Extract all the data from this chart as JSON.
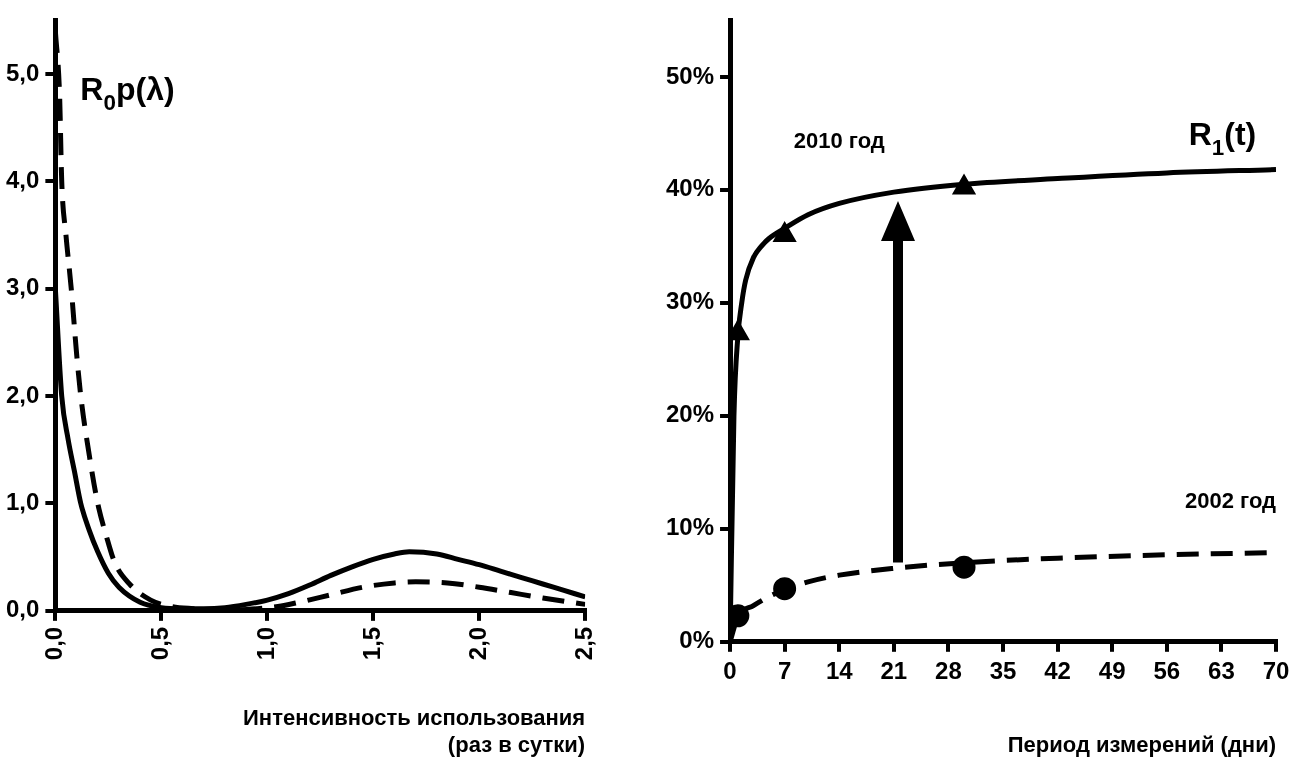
{
  "chart_data": [
    {
      "type": "line",
      "xlabel": "Интенсивность использования\n(раз в сутки)",
      "xlim": [
        0,
        2.5
      ],
      "xticks": [
        {
          "value": 0,
          "label": "0,0"
        },
        {
          "value": 0.5,
          "label": "0,5"
        },
        {
          "value": 1,
          "label": "1,0"
        },
        {
          "value": 1.5,
          "label": "1,5"
        },
        {
          "value": 2,
          "label": "2,0"
        },
        {
          "value": 2.5,
          "label": "2,5"
        }
      ],
      "ylim": [
        0,
        5.5
      ],
      "yticks": [
        {
          "value": 0,
          "label": "0,0"
        },
        {
          "value": 1,
          "label": "1,0"
        },
        {
          "value": 2,
          "label": "2,0"
        },
        {
          "value": 3,
          "label": "3,0"
        },
        {
          "value": 4,
          "label": "4,0"
        },
        {
          "value": 5,
          "label": "5,0"
        }
      ],
      "grid": false,
      "legend": false,
      "marker": "none",
      "annotations": [
        "R$_{0}$p(λ)"
      ],
      "series": [
        {
          "color": "#000000",
          "line_style": "solid",
          "x": [
            0,
            0.03,
            0.06,
            0.09,
            0.12,
            0.16,
            0.2,
            0.25,
            0.3,
            0.4,
            0.5,
            0.6,
            0.7,
            0.8,
            0.9,
            1.0,
            1.1,
            1.2,
            1.3,
            1.4,
            1.5,
            1.6,
            1.67,
            1.8,
            1.9,
            2.0,
            2.1,
            2.2,
            2.3,
            2.4,
            2.5
          ],
          "values": [
            3.0,
            2.0,
            1.6,
            1.3,
            1.0,
            0.75,
            0.55,
            0.35,
            0.22,
            0.08,
            0.03,
            0.02,
            0.02,
            0.03,
            0.06,
            0.1,
            0.16,
            0.24,
            0.33,
            0.41,
            0.48,
            0.53,
            0.55,
            0.53,
            0.48,
            0.43,
            0.37,
            0.31,
            0.25,
            0.19,
            0.13
          ]
        },
        {
          "color": "#000000",
          "line_style": "dashed",
          "x": [
            0,
            0.02,
            0.03,
            0.05,
            0.075,
            0.1,
            0.12,
            0.16,
            0.2,
            0.24,
            0.28,
            0.35,
            0.45,
            0.55,
            0.65,
            0.75,
            0.85,
            0.95,
            1.05,
            1.15,
            1.3,
            1.45,
            1.6,
            1.7,
            1.85,
            2.0,
            2.15,
            2.3,
            2.5
          ],
          "values": [
            5.4,
            4.8,
            4.0,
            3.5,
            3.0,
            2.4,
            2.0,
            1.45,
            1.0,
            0.7,
            0.45,
            0.25,
            0.1,
            0.04,
            0.02,
            0.01,
            0.01,
            0.02,
            0.04,
            0.08,
            0.15,
            0.22,
            0.26,
            0.27,
            0.26,
            0.22,
            0.17,
            0.12,
            0.06
          ]
        }
      ]
    },
    {
      "type": "line",
      "xlabel": "Период измерений (дни)",
      "xlim": [
        0,
        70
      ],
      "xticks": [
        0,
        7,
        14,
        21,
        28,
        35,
        42,
        49,
        56,
        63,
        70
      ],
      "ylim": [
        0,
        55
      ],
      "yticks": [
        {
          "value": 0,
          "label": "0%"
        },
        {
          "value": 10,
          "label": "10%"
        },
        {
          "value": 20,
          "label": "20%"
        },
        {
          "value": 30,
          "label": "30%"
        },
        {
          "value": 40,
          "label": "40%"
        },
        {
          "value": 50,
          "label": "50%"
        }
      ],
      "grid": false,
      "legend": false,
      "annotations": [
        "R$_{1}$(t)"
      ],
      "series": [
        {
          "name": "2010 год",
          "color": "#000000",
          "line_style": "solid",
          "marker": "none",
          "x": [
            0,
            0.5,
            1,
            1.5,
            2,
            3,
            4,
            5,
            7,
            10,
            14,
            21,
            30,
            42,
            56,
            70
          ],
          "values": [
            0,
            20,
            27,
            30,
            32,
            34,
            35,
            35.7,
            36.6,
            37.8,
            38.8,
            39.8,
            40.5,
            41,
            41.5,
            41.8
          ]
        },
        {
          "name": "2002 год",
          "color": "#000000",
          "line_style": "dashed",
          "marker": "none",
          "x": [
            0,
            1,
            3,
            5,
            7,
            10,
            14,
            21,
            30,
            42,
            56,
            70
          ],
          "values": [
            0,
            2.2,
            3.2,
            4,
            4.6,
            5.3,
            5.9,
            6.5,
            7,
            7.4,
            7.7,
            7.9
          ]
        },
        {
          "type": "scatter",
          "color": "#000000",
          "marker": "triangle",
          "x": [
            1,
            7,
            30
          ],
          "values": [
            27.3,
            36,
            40.2
          ]
        },
        {
          "type": "scatter",
          "color": "#000000",
          "marker": "circle",
          "x": [
            1,
            7,
            30
          ],
          "values": [
            2.3,
            4.7,
            6.6
          ]
        }
      ]
    }
  ]
}
